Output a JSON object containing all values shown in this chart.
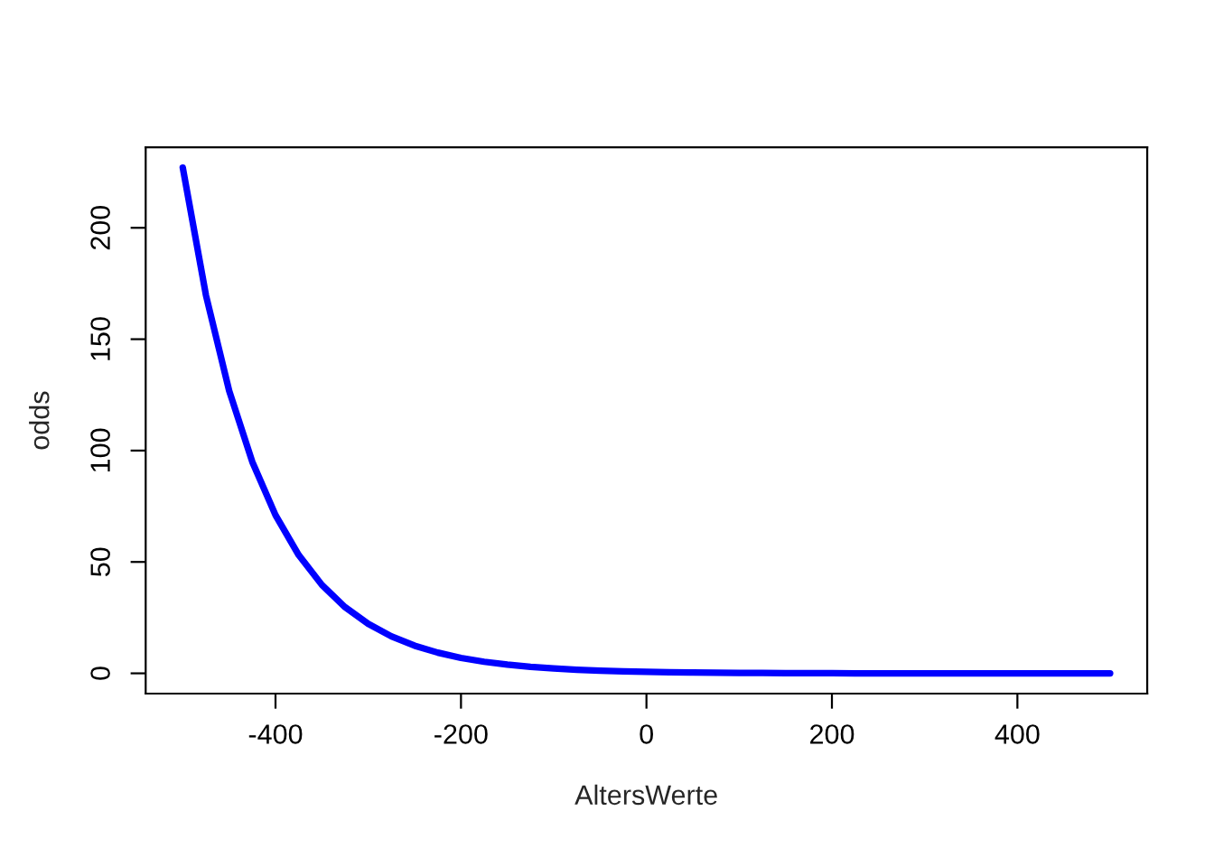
{
  "chart_data": {
    "type": "line",
    "xlabel": "AltersWerte",
    "ylabel": "odds",
    "x": [
      -500,
      -475,
      -450,
      -425,
      -400,
      -375,
      -350,
      -325,
      -300,
      -275,
      -250,
      -225,
      -200,
      -175,
      -150,
      -125,
      -100,
      -75,
      -50,
      -25,
      0,
      25,
      50,
      75,
      100,
      125,
      150,
      175,
      200,
      225,
      250,
      275,
      300,
      325,
      350,
      375,
      400,
      425,
      450,
      475,
      500
    ],
    "series": [
      {
        "color": "#0000ff",
        "values": [
          227,
          169.7,
          126.9,
          94.9,
          71.0,
          53.1,
          39.7,
          29.7,
          22.2,
          16.6,
          12.4,
          9.3,
          6.9,
          5.2,
          3.9,
          2.9,
          2.2,
          1.6,
          1.2,
          0.9,
          0.7,
          0.5,
          0.4,
          0.3,
          0.2,
          0.2,
          0.1,
          0.1,
          0.1,
          0,
          0,
          0,
          0,
          0,
          0,
          0,
          0,
          0,
          0,
          0,
          0
        ]
      }
    ],
    "xlim": [
      -540,
      540
    ],
    "ylim": [
      -9.1,
      236.1
    ],
    "xticks": [
      -400,
      -200,
      0,
      200,
      400
    ],
    "yticks": [
      0,
      50,
      100,
      150,
      200
    ],
    "grid": false,
    "legend": false,
    "marker": "none",
    "line_style": "solid"
  }
}
